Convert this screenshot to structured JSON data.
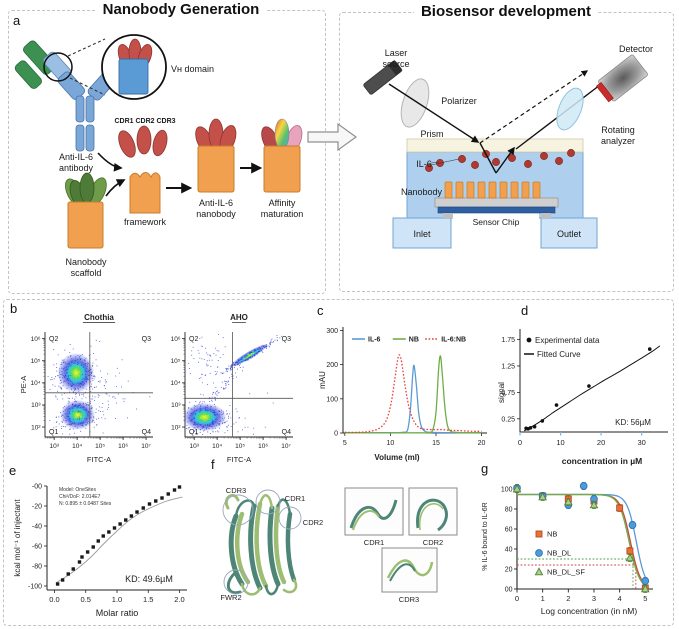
{
  "panel_labels": {
    "a": "a",
    "b": "b",
    "c": "c",
    "d": "d",
    "e": "e",
    "f": "f",
    "g": "g"
  },
  "panel_a": {
    "left_title": "Nanobody Generation",
    "right_title": "Biosensor development",
    "left_labels": {
      "vh_domain": "Vʜ domain",
      "cdr_row": "CDR1  CDR2  CDR3",
      "anti_il6_antibody": [
        "Anti-IL-6",
        "antibody"
      ],
      "framework": "framework",
      "anti_il6_nanobody": [
        "Anti-IL-6",
        "nanobody"
      ],
      "affinity_maturation": [
        "Affinity",
        "maturation"
      ],
      "nanobody_scaffold": [
        "Nanobody",
        "scaffold"
      ]
    },
    "right_labels": {
      "laser_source": [
        "Laser",
        "source"
      ],
      "polarizer": "Polarizer",
      "prism": "Prism",
      "detector": "Detector",
      "rotating_analyzer": [
        "Rotating",
        "analyzer"
      ],
      "il6": "IL-6",
      "nanobody": "Nanobody",
      "sensor_chip": "Sensor Chip",
      "inlet": "Inlet",
      "outlet": "Outlet"
    }
  },
  "panel_f": {
    "structure_labels": {
      "cdr3": "CDR3",
      "cdr1": "CDR1",
      "cdr2": "CDR2",
      "fwr2": "FWR2"
    },
    "inset_labels": [
      "CDR1",
      "CDR2",
      "CDR3"
    ]
  },
  "chart_data": [
    {
      "id": "flow_chothia",
      "panel": "b",
      "type": "scatter",
      "variant": "flow-cytometry",
      "title": "Chothia",
      "xlabel": "FITC-A",
      "ylabel": "PE-A",
      "xlim": [
        2.6,
        7.3
      ],
      "ylim": [
        1.55,
        6.3
      ],
      "x_ticks": {
        "vals": [
          3,
          4,
          5,
          6,
          7
        ],
        "labels": [
          "10³",
          "10⁴",
          "10⁵",
          "10⁶",
          "10⁷"
        ]
      },
      "y_ticks": {
        "vals": [
          2,
          3,
          4,
          5,
          6
        ],
        "labels": [
          "10²",
          "10³",
          "10⁴",
          "10⁵",
          "10⁶"
        ]
      },
      "quadrants": {
        "top_left": "Q2",
        "top_right": "Q3",
        "bottom_left": "Q1",
        "bottom_right": "Q4"
      },
      "crosshair": {
        "x": 4.55,
        "y": 3.55
      },
      "clusters": [
        {
          "cx": 3.95,
          "cy": 4.45,
          "sx": 0.42,
          "sy": 0.48,
          "n": 280,
          "core": true
        },
        {
          "cx": 4.02,
          "cy": 2.55,
          "sx": 0.4,
          "sy": 0.36,
          "n": 240,
          "core": true
        },
        {
          "cx": 4.2,
          "cy": 3.6,
          "sx": 0.9,
          "sy": 1.0,
          "n": 110,
          "core": false
        },
        {
          "cx": 5.0,
          "cy": 3.3,
          "sx": 0.7,
          "sy": 0.6,
          "n": 40,
          "core": false
        }
      ]
    },
    {
      "id": "flow_aho",
      "panel": "b",
      "type": "scatter",
      "variant": "flow-cytometry",
      "title": "AHO",
      "xlabel": "FITC-A",
      "ylabel": "",
      "xlim": [
        2.6,
        7.3
      ],
      "ylim": [
        1.55,
        6.3
      ],
      "x_ticks": {
        "vals": [
          3,
          4,
          5,
          6,
          7
        ],
        "labels": [
          "10³",
          "10⁴",
          "10⁵",
          "10⁶",
          "10⁷"
        ]
      },
      "y_ticks": {
        "vals": [
          2,
          3,
          4,
          5,
          6
        ],
        "labels": [
          "10²",
          "10³",
          "10⁴",
          "10⁵",
          "10⁶"
        ]
      },
      "quadrants": {
        "top_left": "Q2",
        "top_right": "Q3",
        "bottom_left": "Q1",
        "bottom_right": "Q4"
      },
      "crosshair": {
        "x": 4.67,
        "y": 3.3
      },
      "clusters": [
        {
          "cx": 3.45,
          "cy": 2.45,
          "sx": 0.5,
          "sy": 0.34,
          "n": 300,
          "core": true
        },
        {
          "cx": 5.4,
          "cy": 5.25,
          "sx": 0.55,
          "sy": 0.07,
          "n": 240,
          "core": true,
          "slope": 0.61
        },
        {
          "cx": 4.2,
          "cy": 3.8,
          "sx": 0.4,
          "sy": 0.12,
          "n": 45,
          "core": false,
          "slope": 1.0
        },
        {
          "cx": 3.6,
          "cy": 4.9,
          "sx": 0.45,
          "sy": 0.55,
          "n": 65,
          "core": false
        },
        {
          "cx": 4.7,
          "cy": 2.35,
          "sx": 0.75,
          "sy": 0.4,
          "n": 25,
          "core": false
        }
      ]
    },
    {
      "id": "sec",
      "panel": "c",
      "type": "line",
      "xlabel": "Volume (ml)",
      "ylabel": "mAU",
      "xlim": [
        4.8,
        20.6
      ],
      "ylim": [
        0,
        310
      ],
      "x_ticks": [
        5,
        10,
        15,
        20
      ],
      "y_ticks": [
        0,
        100,
        200,
        300
      ],
      "legend_position": "top-inside",
      "series": [
        {
          "name": "IL-6",
          "color": "#5b9bd5",
          "dash": "none",
          "points": [
            [
              5,
              1
            ],
            [
              9,
              1
            ],
            [
              10.5,
              1
            ],
            [
              11.4,
              2
            ],
            [
              11.9,
              10
            ],
            [
              12.2,
              70
            ],
            [
              12.45,
              170
            ],
            [
              12.6,
              197
            ],
            [
              12.85,
              140
            ],
            [
              13.1,
              60
            ],
            [
              13.4,
              18
            ],
            [
              13.8,
              5
            ],
            [
              14.3,
              2
            ],
            [
              16,
              1
            ],
            [
              20,
              1
            ]
          ]
        },
        {
          "name": "NB",
          "color": "#70ad47",
          "dash": "none",
          "points": [
            [
              5,
              0.5
            ],
            [
              13,
              0.5
            ],
            [
              14,
              1
            ],
            [
              14.6,
              6
            ],
            [
              15,
              60
            ],
            [
              15.3,
              190
            ],
            [
              15.5,
              225
            ],
            [
              15.7,
              170
            ],
            [
              16,
              70
            ],
            [
              16.3,
              18
            ],
            [
              16.7,
              4
            ],
            [
              17.2,
              2
            ],
            [
              18,
              1
            ],
            [
              20,
              1
            ]
          ]
        },
        {
          "name": "IL-6:NB",
          "color": "#e8413c",
          "dash": "dotted",
          "points": [
            [
              5,
              2
            ],
            [
              6.5,
              2
            ],
            [
              7.5,
              4
            ],
            [
              8.3,
              8
            ],
            [
              9,
              18
            ],
            [
              9.6,
              40
            ],
            [
              10.1,
              90
            ],
            [
              10.5,
              160
            ],
            [
              10.8,
              215
            ],
            [
              11,
              228
            ],
            [
              11.25,
              205
            ],
            [
              11.6,
              140
            ],
            [
              12,
              80
            ],
            [
              12.4,
              45
            ],
            [
              12.8,
              25
            ],
            [
              13.2,
              15
            ],
            [
              13.7,
              11
            ],
            [
              14.5,
              10
            ],
            [
              15.5,
              10
            ],
            [
              16.5,
              8
            ],
            [
              17.5,
              7
            ],
            [
              19,
              5
            ],
            [
              20,
              5
            ]
          ]
        }
      ]
    },
    {
      "id": "binding",
      "panel": "d",
      "type": "scatter",
      "xlabel": "concentration in µM",
      "ylabel": "signal",
      "xlim": [
        0,
        36.5
      ],
      "ylim": [
        0,
        1.95
      ],
      "x_ticks": [
        0,
        10,
        20,
        30
      ],
      "y_ticks": [
        0.25,
        0.75,
        1.25,
        1.75
      ],
      "legend": [
        {
          "label": "Experimental data",
          "marker": "dot"
        },
        {
          "label": "Fitted Curve",
          "marker": "line"
        }
      ],
      "annotation": "KD: 56µM",
      "points": [
        [
          1.5,
          0.07
        ],
        [
          2,
          0.06
        ],
        [
          2.6,
          0.08
        ],
        [
          3.6,
          0.1
        ],
        [
          5.5,
          0.21
        ],
        [
          9,
          0.51
        ],
        [
          17,
          0.87
        ],
        [
          32,
          1.57
        ]
      ],
      "fit": [
        [
          1,
          0.02
        ],
        [
          2,
          0.06
        ],
        [
          4,
          0.15
        ],
        [
          6,
          0.25
        ],
        [
          8,
          0.36
        ],
        [
          10,
          0.46
        ],
        [
          12,
          0.56
        ],
        [
          15,
          0.71
        ],
        [
          18,
          0.85
        ],
        [
          21,
          0.99
        ],
        [
          24,
          1.12
        ],
        [
          27,
          1.26
        ],
        [
          30,
          1.4
        ],
        [
          32.5,
          1.52
        ],
        [
          34.5,
          1.63
        ]
      ]
    },
    {
      "id": "itc",
      "panel": "e",
      "type": "scatter",
      "xlabel": "Molar ratio",
      "ylabel": "kcal mol⁻¹ of injectant",
      "xlim": [
        -0.12,
        2.12
      ],
      "ylim": [
        -104,
        0
      ],
      "x_ticks": {
        "vals": [
          0,
          0.5,
          1,
          1.5,
          2
        ],
        "labels": [
          "0.0",
          "0.5",
          "1.0",
          "1.5",
          "2.0"
        ]
      },
      "y_ticks": {
        "vals": [
          0,
          -20,
          -40,
          -60,
          -80,
          -100
        ],
        "labels": [
          "-00",
          "-20",
          "-40",
          "-60",
          "-80",
          "-100"
        ]
      },
      "annotations": [
        "Model: OneSites",
        "Chi²/DoF:  2.014E7",
        "N: 0.895 ± 0.0487 Sites"
      ],
      "kd_label": "KD: 49.6µM",
      "points": [
        [
          0.05,
          -98
        ],
        [
          0.13,
          -94
        ],
        [
          0.22,
          -88
        ],
        [
          0.3,
          -83
        ],
        [
          0.4,
          -76
        ],
        [
          0.44,
          -71
        ],
        [
          0.53,
          -66
        ],
        [
          0.62,
          -61
        ],
        [
          0.7,
          -55
        ],
        [
          0.78,
          -50
        ],
        [
          0.87,
          -46
        ],
        [
          0.96,
          -42
        ],
        [
          1.05,
          -38
        ],
        [
          1.14,
          -34
        ],
        [
          1.23,
          -30
        ],
        [
          1.32,
          -26
        ],
        [
          1.42,
          -22
        ],
        [
          1.52,
          -18
        ],
        [
          1.62,
          -15
        ],
        [
          1.72,
          -12
        ],
        [
          1.82,
          -8
        ],
        [
          1.92,
          -4
        ],
        [
          2.0,
          -1
        ]
      ],
      "fit": [
        [
          0.02,
          -97
        ],
        [
          0.2,
          -90
        ],
        [
          0.4,
          -81
        ],
        [
          0.6,
          -70
        ],
        [
          0.8,
          -57
        ],
        [
          1.0,
          -45
        ],
        [
          1.2,
          -34
        ],
        [
          1.4,
          -26
        ],
        [
          1.6,
          -20
        ],
        [
          1.8,
          -15
        ],
        [
          2.05,
          -11
        ]
      ]
    },
    {
      "id": "competition",
      "panel": "g",
      "type": "line",
      "xlabel": "Log concentration (in nM)",
      "ylabel": "% IL-6 bound to IL-6R",
      "xlim": [
        0,
        5.3
      ],
      "ylim": [
        0,
        105
      ],
      "x_ticks": [
        0,
        1,
        2,
        3,
        4,
        5
      ],
      "y_ticks": {
        "vals": [
          0,
          20,
          40,
          60,
          80,
          100
        ],
        "labels": [
          "00",
          "20",
          "40",
          "60",
          "80",
          "100"
        ]
      },
      "series": [
        {
          "name": "NB",
          "marker": "square",
          "fill": "#e8742c",
          "stroke": "#b84a32",
          "line": "#cc4840",
          "curve": {
            "top": 94.5,
            "ec50": 4.42,
            "hill": 2.2
          },
          "points": [
            [
              0,
              100
            ],
            [
              1,
              93
            ],
            [
              2,
              90
            ],
            [
              3,
              88
            ],
            [
              4,
              81
            ],
            [
              4.4,
              38
            ],
            [
              5,
              1
            ]
          ]
        },
        {
          "name": "NB_DL",
          "marker": "circle",
          "fill": "#4f9bd9",
          "stroke": "#2e75b6",
          "line": "#5b9bd5",
          "curve": {
            "top": 94.5,
            "ec50": 4.65,
            "hill": 2.4
          },
          "points": [
            [
              0,
              101
            ],
            [
              1,
              93
            ],
            [
              2,
              84
            ],
            [
              2.6,
              103
            ],
            [
              3,
              90
            ],
            [
              4.5,
              64
            ],
            [
              5,
              8
            ]
          ]
        },
        {
          "name": "NB_DL_SF",
          "marker": "triangle",
          "fill": "#a9d18e",
          "stroke": "#538135",
          "line": "#70ad47",
          "curve": {
            "top": 94.5,
            "ec50": 4.37,
            "hill": 2.2
          },
          "points": [
            [
              0,
              100
            ],
            [
              1,
              92
            ],
            [
              2,
              87
            ],
            [
              3,
              84
            ],
            [
              4.4,
              31
            ],
            [
              5,
              0
            ]
          ]
        }
      ],
      "ref_lines": [
        {
          "y": 30,
          "x": 4.52,
          "color": "#4e9e4e"
        },
        {
          "y": 24,
          "x": 4.63,
          "color": "#cc4444"
        }
      ]
    }
  ]
}
